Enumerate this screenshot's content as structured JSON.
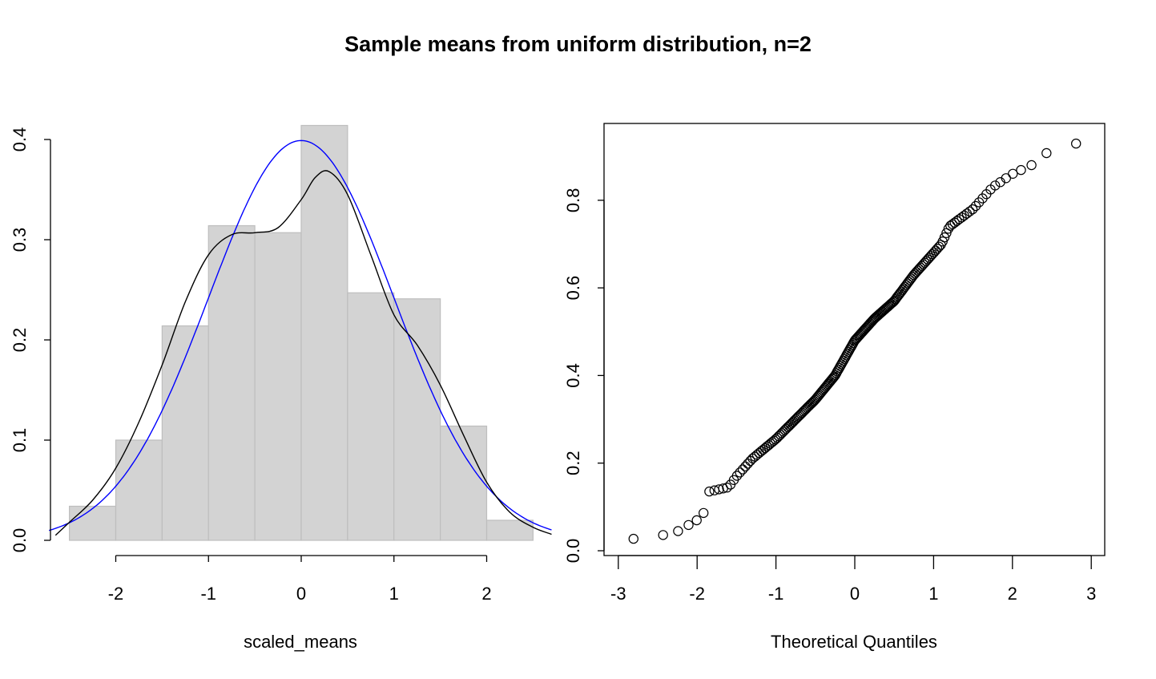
{
  "title": "Sample means from uniform distribution, n=2",
  "colors": {
    "bar_fill": "#d3d3d3",
    "bar_border": "#bebebe",
    "density_line": "#000000",
    "normal_line": "#0000ff",
    "points": "#000000"
  },
  "left_panel": {
    "xlabel": "scaled_means",
    "x_ticks": [
      "-2",
      "-1",
      "0",
      "1",
      "2"
    ],
    "y_ticks": [
      "0.0",
      "0.1",
      "0.2",
      "0.3",
      "0.4"
    ]
  },
  "right_panel": {
    "xlabel": "Theoretical Quantiles",
    "x_ticks": [
      "-3",
      "-2",
      "-1",
      "0",
      "1",
      "2",
      "3"
    ],
    "y_ticks": [
      "0.0",
      "0.2",
      "0.4",
      "0.6",
      "0.8"
    ]
  },
  "chart_data": [
    {
      "type": "bar",
      "subtype": "histogram",
      "title": "Sample means from uniform distribution, n=2",
      "xlabel": "scaled_means",
      "ylabel": "",
      "bin_edges": [
        -2.5,
        -2.0,
        -1.5,
        -1.0,
        -0.5,
        0.0,
        0.5,
        1.0,
        1.5,
        2.0,
        2.5
      ],
      "categories": [
        "[-2.5,-2)",
        "[-2,-1.5)",
        "[-1.5,-1)",
        "[-1,-0.5)",
        "[-0.5,0)",
        "[0,0.5)",
        "[0.5,1)",
        "[1,1.5)",
        "[1.5,2)",
        "[2,2.5)"
      ],
      "values": [
        0.034,
        0.1,
        0.214,
        0.314,
        0.307,
        0.414,
        0.247,
        0.241,
        0.114,
        0.02
      ],
      "overlays": [
        {
          "name": "kernel density",
          "color": "#000000",
          "x": [
            -2.65,
            -2.5,
            -2.25,
            -2.0,
            -1.75,
            -1.5,
            -1.25,
            -1.0,
            -0.75,
            -0.5,
            -0.25,
            0.0,
            0.15,
            0.3,
            0.5,
            0.75,
            1.0,
            1.25,
            1.5,
            1.75,
            2.0,
            2.25,
            2.5,
            2.7
          ],
          "y": [
            0.005,
            0.018,
            0.04,
            0.072,
            0.118,
            0.175,
            0.238,
            0.285,
            0.305,
            0.307,
            0.312,
            0.34,
            0.362,
            0.368,
            0.345,
            0.285,
            0.225,
            0.195,
            0.155,
            0.105,
            0.058,
            0.028,
            0.013,
            0.006
          ]
        },
        {
          "name": "normal N(0,1)",
          "color": "#0000ff",
          "function": "dnorm",
          "mean": 0,
          "sd": 1
        }
      ],
      "xlim": [
        -2.7,
        2.7
      ],
      "ylim": [
        0,
        0.42
      ],
      "x_ticks": [
        -2,
        -1,
        0,
        1,
        2
      ],
      "y_ticks": [
        0.0,
        0.1,
        0.2,
        0.3,
        0.4
      ],
      "grid": false
    },
    {
      "type": "scatter",
      "subtype": "qq-plot",
      "xlabel": "Theoretical Quantiles",
      "ylabel": "",
      "n_points": 200,
      "anchor_x": [
        -2.93,
        -2.58,
        -2.4,
        -2.25,
        -2.0,
        -1.9,
        -1.85,
        -1.6,
        -1.5,
        -1.3,
        -1.0,
        -0.75,
        -0.5,
        -0.25,
        0.0,
        0.25,
        0.5,
        0.75,
        1.0,
        1.1,
        1.2,
        1.5,
        1.75,
        2.0,
        2.24,
        2.4,
        2.58,
        2.93
      ],
      "anchor_y": [
        0.023,
        0.035,
        0.036,
        0.044,
        0.07,
        0.09,
        0.135,
        0.145,
        0.17,
        0.21,
        0.255,
        0.3,
        0.345,
        0.4,
        0.48,
        0.53,
        0.57,
        0.63,
        0.68,
        0.7,
        0.74,
        0.78,
        0.83,
        0.86,
        0.88,
        0.907,
        0.91,
        0.94
      ],
      "xlim": [
        -3.1,
        3.2
      ],
      "ylim": [
        -0.01,
        0.98
      ],
      "x_ticks": [
        -3,
        -2,
        -1,
        0,
        1,
        2,
        3
      ],
      "y_ticks": [
        0.0,
        0.2,
        0.4,
        0.6,
        0.8
      ],
      "grid": false
    }
  ]
}
